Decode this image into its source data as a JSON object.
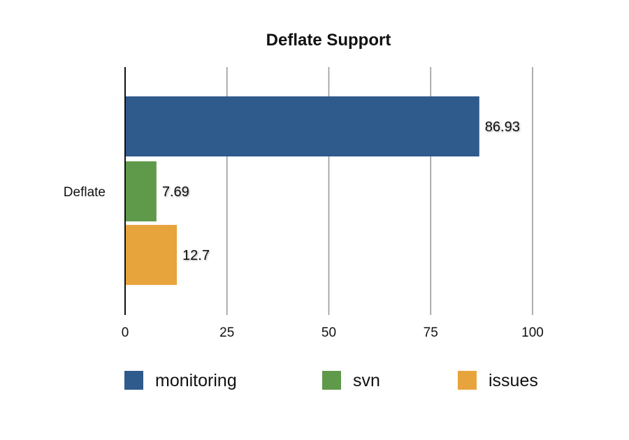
{
  "chart_data": {
    "type": "bar",
    "orientation": "horizontal",
    "title": "Deflate Support",
    "categories": [
      "Deflate"
    ],
    "series": [
      {
        "name": "monitoring",
        "values": [
          86.93
        ],
        "color": "#2f5a8c"
      },
      {
        "name": "svn",
        "values": [
          7.69
        ],
        "color": "#5f9a4a"
      },
      {
        "name": "issues",
        "values": [
          12.7
        ],
        "color": "#e8a43c"
      }
    ],
    "data_labels": [
      "86.93",
      "7.69",
      "12.7"
    ],
    "xlim": [
      0,
      100
    ],
    "x_ticks": [
      0,
      25,
      50,
      75,
      100
    ],
    "x_tick_labels": [
      "0",
      "25",
      "50",
      "75",
      "100"
    ],
    "grid": true,
    "legend_position": "bottom"
  }
}
